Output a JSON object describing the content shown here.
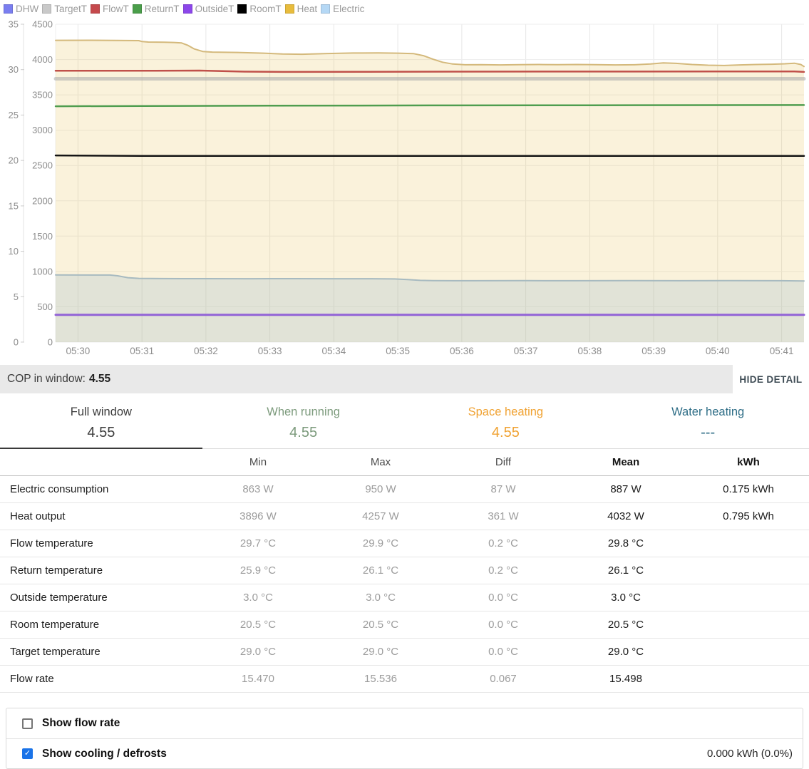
{
  "legend": {
    "items": [
      {
        "label": "DHW",
        "color": "#7a7ef0"
      },
      {
        "label": "TargetT",
        "color": "#c9c9c9"
      },
      {
        "label": "FlowT",
        "color": "#c5494c"
      },
      {
        "label": "ReturnT",
        "color": "#4a9e4a"
      },
      {
        "label": "OutsideT",
        "color": "#8c46ea"
      },
      {
        "label": "RoomT",
        "color": "#000000"
      },
      {
        "label": "Heat",
        "color": "#e8bc3d"
      },
      {
        "label": "Electric",
        "color": "#b5d8f5"
      }
    ]
  },
  "chart_data": {
    "type": "line",
    "title": "",
    "plot": {
      "l": 78,
      "r": 1128,
      "t": 12,
      "b": 458,
      "label_y": 475
    },
    "t_range": [
      29.65,
      41.35
    ],
    "x_ticks": [
      {
        "t": 30,
        "label": "05:30"
      },
      {
        "t": 31,
        "label": "05:31"
      },
      {
        "t": 32,
        "label": "05:32"
      },
      {
        "t": 33,
        "label": "05:33"
      },
      {
        "t": 34,
        "label": "05:34"
      },
      {
        "t": 35,
        "label": "05:35"
      },
      {
        "t": 36,
        "label": "05:36"
      },
      {
        "t": 37,
        "label": "05:37"
      },
      {
        "t": 38,
        "label": "05:38"
      },
      {
        "t": 39,
        "label": "05:39"
      },
      {
        "t": 40,
        "label": "05:40"
      },
      {
        "t": 41,
        "label": "05:41"
      }
    ],
    "temp_axis": {
      "max": 35,
      "ticks": [
        0,
        5,
        10,
        15,
        20,
        25,
        30,
        35
      ]
    },
    "power_axis": {
      "max": 4500,
      "ticks": [
        0,
        500,
        1000,
        1500,
        2000,
        2500,
        3000,
        3500,
        4000,
        4500
      ]
    },
    "grid": true,
    "legend_position": "top-left",
    "series": [
      {
        "name": "DHW",
        "axis": "power",
        "color": "#7a7ef0",
        "width": 2,
        "points": []
      },
      {
        "name": "Heat",
        "axis": "power",
        "color": "#d4b97c",
        "width": 2,
        "fill": "rgba(230,184,57,0.18)",
        "points": [
          [
            29.65,
            4272
          ],
          [
            30.2,
            4273
          ],
          [
            30.6,
            4270
          ],
          [
            30.95,
            4268
          ],
          [
            31.0,
            4255
          ],
          [
            31.1,
            4248
          ],
          [
            31.35,
            4245
          ],
          [
            31.5,
            4242
          ],
          [
            31.62,
            4235
          ],
          [
            31.72,
            4200
          ],
          [
            31.82,
            4150
          ],
          [
            31.95,
            4115
          ],
          [
            32.1,
            4105
          ],
          [
            32.5,
            4100
          ],
          [
            32.9,
            4090
          ],
          [
            33.2,
            4078
          ],
          [
            33.5,
            4075
          ],
          [
            33.9,
            4085
          ],
          [
            34.3,
            4092
          ],
          [
            34.7,
            4093
          ],
          [
            35.0,
            4090
          ],
          [
            35.25,
            4083
          ],
          [
            35.4,
            4055
          ],
          [
            35.55,
            4005
          ],
          [
            35.7,
            3962
          ],
          [
            35.85,
            3938
          ],
          [
            36.05,
            3926
          ],
          [
            36.3,
            3928
          ],
          [
            36.6,
            3924
          ],
          [
            36.9,
            3928
          ],
          [
            37.2,
            3930
          ],
          [
            37.5,
            3927
          ],
          [
            37.8,
            3930
          ],
          [
            38.1,
            3927
          ],
          [
            38.4,
            3924
          ],
          [
            38.7,
            3926
          ],
          [
            38.95,
            3938
          ],
          [
            39.15,
            3952
          ],
          [
            39.35,
            3946
          ],
          [
            39.6,
            3930
          ],
          [
            39.85,
            3920
          ],
          [
            40.1,
            3916
          ],
          [
            40.35,
            3924
          ],
          [
            40.6,
            3930
          ],
          [
            40.85,
            3934
          ],
          [
            41.05,
            3940
          ],
          [
            41.2,
            3948
          ],
          [
            41.3,
            3930
          ],
          [
            41.35,
            3902
          ]
        ]
      },
      {
        "name": "Electric",
        "axis": "power",
        "color": "#a7bac0",
        "width": 2,
        "fill": "rgba(160,190,205,0.28)",
        "points": [
          [
            29.65,
            950
          ],
          [
            30.5,
            949
          ],
          [
            30.62,
            938
          ],
          [
            30.78,
            912
          ],
          [
            30.95,
            902
          ],
          [
            31.3,
            899
          ],
          [
            32.0,
            898
          ],
          [
            32.7,
            897
          ],
          [
            33.4,
            898
          ],
          [
            34.0,
            897
          ],
          [
            34.6,
            897
          ],
          [
            34.95,
            894
          ],
          [
            35.15,
            886
          ],
          [
            35.35,
            874
          ],
          [
            35.55,
            870
          ],
          [
            36.2,
            869
          ],
          [
            37.0,
            870
          ],
          [
            37.8,
            869
          ],
          [
            38.6,
            870
          ],
          [
            39.4,
            869
          ],
          [
            40.2,
            870
          ],
          [
            41.0,
            869
          ],
          [
            41.35,
            866
          ]
        ]
      },
      {
        "name": "TargetT",
        "axis": "temp",
        "color": "#a8a8a8",
        "width": 5,
        "opacity": 0.55,
        "points": [
          [
            29.65,
            29.0
          ],
          [
            41.35,
            29.0
          ]
        ]
      },
      {
        "name": "FlowT",
        "axis": "temp",
        "color": "#c0504a",
        "width": 2.5,
        "points": [
          [
            29.65,
            29.88
          ],
          [
            31.2,
            29.88
          ],
          [
            31.9,
            29.9
          ],
          [
            32.2,
            29.85
          ],
          [
            32.6,
            29.78
          ],
          [
            33.2,
            29.75
          ],
          [
            34.5,
            29.76
          ],
          [
            36.0,
            29.78
          ],
          [
            38.0,
            29.79
          ],
          [
            40.0,
            29.8
          ],
          [
            41.2,
            29.8
          ],
          [
            41.35,
            29.75
          ]
        ]
      },
      {
        "name": "ReturnT",
        "axis": "temp",
        "color": "#4f9d4f",
        "width": 2.5,
        "points": [
          [
            29.65,
            25.97
          ],
          [
            31.0,
            26.0
          ],
          [
            33.0,
            26.03
          ],
          [
            35.5,
            26.06
          ],
          [
            38.0,
            26.08
          ],
          [
            41.35,
            26.1
          ]
        ]
      },
      {
        "name": "RoomT",
        "axis": "temp",
        "color": "#141414",
        "width": 2.5,
        "points": [
          [
            29.65,
            20.55
          ],
          [
            31.0,
            20.5
          ],
          [
            41.35,
            20.5
          ]
        ]
      },
      {
        "name": "OutsideT",
        "axis": "temp",
        "color": "#9263d6",
        "width": 3,
        "points": [
          [
            29.65,
            3.0
          ],
          [
            41.35,
            3.0
          ]
        ]
      }
    ]
  },
  "cop_bar": {
    "label": "COP in window:",
    "value": "4.55",
    "button_label": "HIDE DETAIL"
  },
  "stats": {
    "tabs": [
      {
        "label": "Full window",
        "value": "4.55",
        "color": "#3d3d3d",
        "active": true
      },
      {
        "label": "When running",
        "value": "4.55",
        "color": "#7d9b7d",
        "active": false
      },
      {
        "label": "Space heating",
        "value": "4.55",
        "color": "#f0a232",
        "active": false
      },
      {
        "label": "Water heating",
        "value": "---",
        "color": "#2f6e87",
        "active": false
      }
    ]
  },
  "table": {
    "headers": [
      "",
      "Min",
      "Max",
      "Diff",
      "Mean",
      "kWh"
    ],
    "rows": [
      {
        "label": "Electric consumption",
        "min": "863 W",
        "max": "950 W",
        "diff": "87 W",
        "mean": "887 W",
        "kwh": "0.175 kWh"
      },
      {
        "label": "Heat output",
        "min": "3896 W",
        "max": "4257 W",
        "diff": "361 W",
        "mean": "4032 W",
        "kwh": "0.795 kWh"
      },
      {
        "label": "Flow temperature",
        "min": "29.7 °C",
        "max": "29.9 °C",
        "diff": "0.2 °C",
        "mean": "29.8 °C",
        "kwh": ""
      },
      {
        "label": "Return temperature",
        "min": "25.9 °C",
        "max": "26.1 °C",
        "diff": "0.2 °C",
        "mean": "26.1 °C",
        "kwh": ""
      },
      {
        "label": "Outside temperature",
        "min": "3.0 °C",
        "max": "3.0 °C",
        "diff": "0.0 °C",
        "mean": "3.0 °C",
        "kwh": ""
      },
      {
        "label": "Room temperature",
        "min": "20.5 °C",
        "max": "20.5 °C",
        "diff": "0.0 °C",
        "mean": "20.5 °C",
        "kwh": ""
      },
      {
        "label": "Target temperature",
        "min": "29.0 °C",
        "max": "29.0 °C",
        "diff": "0.0 °C",
        "mean": "29.0 °C",
        "kwh": ""
      },
      {
        "label": "Flow rate",
        "min": "15.470",
        "max": "15.536",
        "diff": "0.067",
        "mean": "15.498",
        "kwh": ""
      }
    ]
  },
  "options": {
    "rows": [
      {
        "label": "Show flow rate",
        "checked": false,
        "value": ""
      },
      {
        "label": "Show cooling / defrosts",
        "checked": true,
        "value": "0.000 kWh (0.0%)",
        "check_glyph": "✓"
      }
    ]
  }
}
